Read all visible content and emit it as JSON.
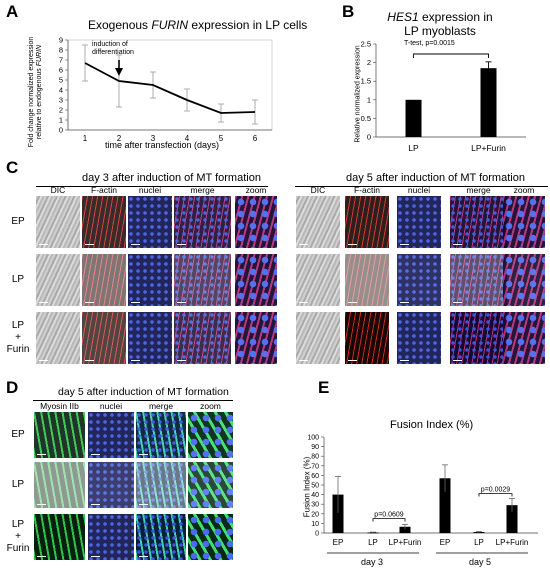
{
  "panels": {
    "A": {
      "label": "A",
      "title_pre": "Exogenous ",
      "title_gene": "FURIN",
      "title_post": " expression in LP cells",
      "ylabel_line1": "Fold change normalized expression",
      "ylabel_line2_pre": "relative to endogenous ",
      "ylabel_line2_gene": "FURIN",
      "annotation_line1": "induction of",
      "annotation_line2": "differentiation"
    },
    "B": {
      "label": "B",
      "title_gene": "HES1",
      "title_post": " expression  in",
      "title_line2": "LP myoblasts",
      "stat": "T-test, p=0.0015",
      "ylabel": "Relative normalized expression"
    },
    "C": {
      "label": "C",
      "left_header": "day 3 after induction of MT formation",
      "right_header": "day 5 after induction of MT formation",
      "columns": [
        "DIC",
        "F-actin",
        "nuclei",
        "merge",
        "zoom"
      ],
      "rows": [
        "EP",
        "LP",
        "LP\n+\nFurin"
      ]
    },
    "D": {
      "label": "D",
      "header": "day 5 after induction of MT formation",
      "columns": [
        "Myosin IIb",
        "nuclei",
        "merge",
        "zoom"
      ],
      "rows": [
        "EP",
        "LP",
        "LP\n+\nFurin"
      ]
    },
    "E": {
      "label": "E",
      "title": "Fusion Index (%)",
      "ylabel": "Fusion Index (%)",
      "group_labels": [
        "day 3",
        "day 5"
      ],
      "stat_left": "p=0.0609",
      "stat_right": "p=0.0029"
    }
  },
  "colors": {
    "fluor_red": "#c8281e",
    "fluor_blue": "#2a3fb4",
    "fluor_green": "#2fc24a",
    "merge_magenta": "#b4307a",
    "bar": "#000000"
  },
  "chart_data": [
    {
      "panel": "A",
      "type": "line",
      "x": [
        1,
        2,
        3,
        4,
        5,
        6
      ],
      "values": [
        6.7,
        4.9,
        4.5,
        3.0,
        1.7,
        1.8
      ],
      "errors": [
        1.8,
        2.6,
        1.3,
        1.1,
        0.9,
        1.2
      ],
      "xlabel": "time after transfection (days)",
      "xlim": [
        0.5,
        6.5
      ],
      "ylim": [
        0,
        9
      ],
      "yticks": [
        0,
        1,
        2,
        3,
        4,
        5,
        6,
        7,
        8,
        9
      ],
      "annotation_x": 2
    },
    {
      "panel": "B",
      "type": "bar",
      "categories": [
        "LP",
        "LP+Furin"
      ],
      "values": [
        1.0,
        1.85
      ],
      "errors": [
        0,
        0.17
      ],
      "ylim": [
        0,
        2.5
      ],
      "yticks": [
        0,
        0.5,
        1,
        1.5,
        2,
        2.5
      ]
    },
    {
      "panel": "E",
      "type": "bar",
      "categories": [
        "EP",
        "LP",
        "LP+Furin",
        "EP",
        "LP",
        "LP+Furin"
      ],
      "values": [
        40,
        0.5,
        6.5,
        57,
        1,
        29
      ],
      "errors": [
        19,
        0.4,
        2.5,
        14,
        0.5,
        7
      ],
      "ylim": [
        0,
        100
      ],
      "yticks": [
        0,
        10,
        20,
        30,
        40,
        50,
        60,
        70,
        80,
        90,
        100
      ]
    }
  ]
}
